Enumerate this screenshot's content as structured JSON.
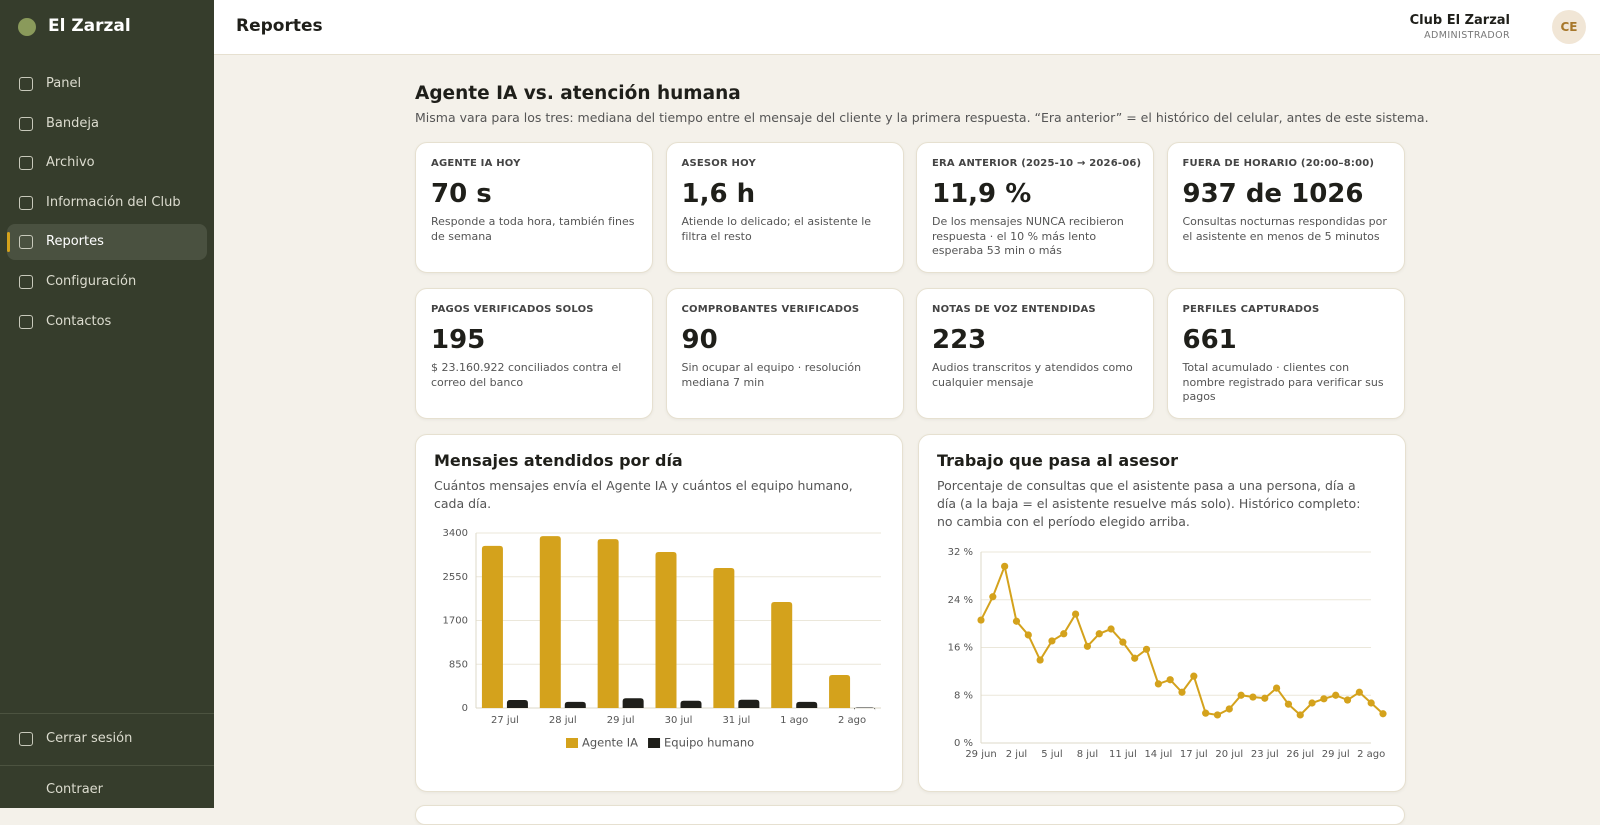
{
  "sidebar": {
    "brand": "El Zarzal",
    "nav": [
      "Panel",
      "Bandeja",
      "Archivo",
      "Información del Club",
      "Reportes",
      "Configuración",
      "Contactos"
    ],
    "active": 4,
    "logout": "Cerrar sesión",
    "collapse": "Contraer"
  },
  "header": {
    "title": "Reportes",
    "user": "Club El Zarzal",
    "role": "ADMINISTRADOR",
    "avatar": "CE"
  },
  "section": {
    "title": "Agente IA vs. atención humana",
    "subtitle": "Misma vara para los tres: mediana del tiempo entre el mensaje del cliente y la primera respuesta. “Era anterior” = el histórico del celular, antes de este sistema."
  },
  "kpis": [
    {
      "label": "AGENTE IA HOY",
      "value": "70 s",
      "note": "Responde a toda hora, también fines de semana"
    },
    {
      "label": "ASESOR HOY",
      "value": "1,6 h",
      "note": "Atiende lo delicado; el asistente le filtra el resto"
    },
    {
      "label": "ERA ANTERIOR (2025-10 → 2026-06)",
      "value": "11,9 %",
      "note": "De los mensajes NUNCA recibieron respuesta · el 10 % más lento esperaba 53 min o más"
    },
    {
      "label": "FUERA DE HORARIO (20:00–8:00)",
      "value": "937 de 1026",
      "note": "Consultas nocturnas respondidas por el asistente en menos de 5 minutos"
    },
    {
      "label": "PAGOS VERIFICADOS SOLOS",
      "value": "195",
      "note": "$ 23.160.922 conciliados contra el correo del banco"
    },
    {
      "label": "COMPROBANTES VERIFICADOS",
      "value": "90",
      "note": "Sin ocupar al equipo · resolución mediana 7 min"
    },
    {
      "label": "NOTAS DE VOZ ENTENDIDAS",
      "value": "223",
      "note": "Audios transcritos y atendidos como cualquier mensaje"
    },
    {
      "label": "PERFILES CAPTURADOS",
      "value": "661",
      "note": "Total acumulado · clientes con nombre registrado para verificar sus pagos"
    }
  ],
  "chart_data": [
    {
      "type": "bar",
      "title": "Mensajes atendidos por día",
      "subtitle": "Cuántos mensajes envía el Agente IA y cuántos el equipo humano, cada día.",
      "categories": [
        "27 jul",
        "28 jul",
        "29 jul",
        "30 jul",
        "31 jul",
        "1 ago",
        "2 ago"
      ],
      "series": [
        {
          "name": "Agente IA",
          "color": "#d4a21c",
          "values": [
            3150,
            3340,
            3280,
            3030,
            2720,
            2060,
            640
          ]
        },
        {
          "name": "Equipo humano",
          "color": "#1f1f1a",
          "values": [
            155,
            120,
            190,
            140,
            160,
            120,
            10
          ]
        }
      ],
      "ylim": [
        0,
        3400
      ],
      "yticks": [
        0,
        850,
        1700,
        2550,
        3400
      ],
      "grid": true,
      "legend": "bottom"
    },
    {
      "type": "line",
      "title": "Trabajo que pasa al asesor",
      "subtitle": "Porcentaje de consultas que el asistente pasa a una persona, día a día (a la baja = el asistente resuelve más solo). Histórico completo: no cambia con el período elegido arriba.",
      "categories": [
        "29 jun",
        null,
        null,
        "2 jul",
        null,
        null,
        "5 jul",
        null,
        null,
        "8 jul",
        null,
        null,
        "11 jul",
        null,
        null,
        "14 jul",
        null,
        null,
        "17 jul",
        null,
        null,
        "20 jul",
        null,
        null,
        "23 jul",
        null,
        null,
        "26 jul",
        null,
        null,
        "29 jul",
        null,
        null,
        "2 ago",
        null
      ],
      "values": [
        20.6,
        24.5,
        29.6,
        20.4,
        18.1,
        13.9,
        17.1,
        18.3,
        21.6,
        16.2,
        18.3,
        19.1,
        16.9,
        14.2,
        15.7,
        9.9,
        10.6,
        8.5,
        11.2,
        5.0,
        4.7,
        5.7,
        8.0,
        7.7,
        7.5,
        9.2,
        6.5,
        4.7,
        6.7,
        7.4,
        8.0,
        7.2,
        8.5,
        6.7,
        4.9
      ],
      "color": "#d4a21c",
      "ylim": [
        0,
        32
      ],
      "yticks": [
        {
          "value": 0,
          "label": "0 %"
        },
        {
          "value": 8,
          "label": "8 %"
        },
        {
          "value": 16,
          "label": "16 %"
        },
        {
          "value": 24,
          "label": "24 %"
        },
        {
          "value": 32,
          "label": "32 %"
        }
      ],
      "grid": true
    }
  ]
}
